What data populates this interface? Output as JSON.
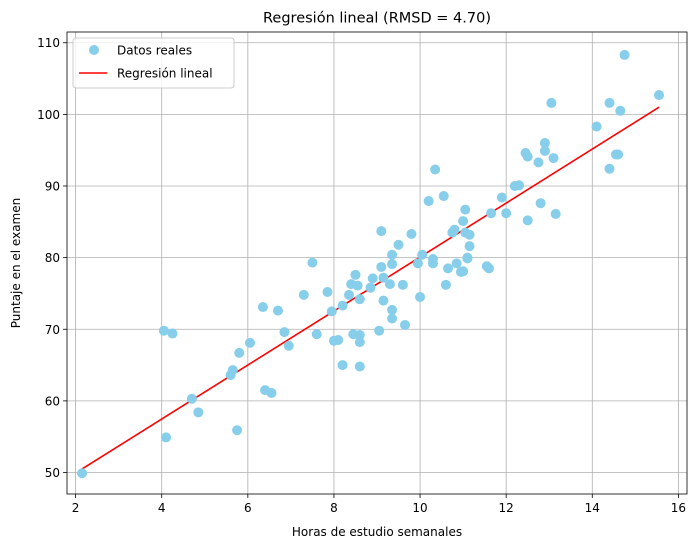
{
  "chart_data": {
    "type": "scatter",
    "title": "Regresión lineal (RMSD = 4.70)",
    "xlabel": "Horas de estudio semanales",
    "ylabel": "Puntaje en el examen",
    "xlim": [
      1.8,
      16.2
    ],
    "ylim": [
      47.0,
      111.5
    ],
    "xticks": [
      2,
      4,
      6,
      8,
      10,
      12,
      14,
      16
    ],
    "yticks": [
      50,
      60,
      70,
      80,
      90,
      100,
      110
    ],
    "grid": true,
    "legend_position": "top-left",
    "series": [
      {
        "name": "Datos reales",
        "kind": "scatter",
        "color": "#87ceeb",
        "points": [
          [
            2.15,
            49.9
          ],
          [
            4.05,
            69.8
          ],
          [
            4.25,
            69.4
          ],
          [
            4.1,
            54.9
          ],
          [
            4.7,
            60.3
          ],
          [
            4.85,
            58.4
          ],
          [
            5.6,
            63.6
          ],
          [
            5.65,
            64.3
          ],
          [
            5.75,
            55.9
          ],
          [
            5.8,
            66.7
          ],
          [
            6.05,
            68.1
          ],
          [
            6.35,
            73.1
          ],
          [
            6.4,
            61.5
          ],
          [
            6.55,
            61.1
          ],
          [
            6.7,
            72.6
          ],
          [
            6.85,
            69.6
          ],
          [
            6.95,
            67.7
          ],
          [
            7.3,
            74.8
          ],
          [
            7.5,
            79.3
          ],
          [
            7.6,
            69.3
          ],
          [
            7.85,
            75.2
          ],
          [
            7.95,
            72.5
          ],
          [
            8.0,
            68.4
          ],
          [
            8.1,
            68.5
          ],
          [
            8.2,
            65.0
          ],
          [
            8.2,
            73.3
          ],
          [
            8.35,
            74.8
          ],
          [
            8.4,
            76.3
          ],
          [
            8.45,
            69.3
          ],
          [
            8.5,
            77.6
          ],
          [
            8.55,
            76.1
          ],
          [
            8.6,
            74.2
          ],
          [
            8.6,
            69.2
          ],
          [
            8.6,
            68.2
          ],
          [
            8.6,
            64.8
          ],
          [
            8.85,
            75.8
          ],
          [
            8.9,
            77.1
          ],
          [
            9.05,
            69.8
          ],
          [
            9.1,
            78.7
          ],
          [
            9.1,
            83.7
          ],
          [
            9.15,
            77.2
          ],
          [
            9.15,
            74.0
          ],
          [
            9.3,
            76.3
          ],
          [
            9.35,
            79.1
          ],
          [
            9.35,
            80.4
          ],
          [
            9.35,
            72.7
          ],
          [
            9.35,
            71.5
          ],
          [
            9.5,
            81.8
          ],
          [
            9.6,
            76.2
          ],
          [
            9.65,
            70.6
          ],
          [
            9.8,
            83.3
          ],
          [
            9.95,
            79.2
          ],
          [
            10.0,
            74.5
          ],
          [
            10.05,
            80.4
          ],
          [
            10.2,
            87.9
          ],
          [
            10.3,
            79.2
          ],
          [
            10.3,
            79.8
          ],
          [
            10.35,
            92.3
          ],
          [
            10.55,
            88.6
          ],
          [
            10.6,
            76.2
          ],
          [
            10.65,
            78.5
          ],
          [
            10.75,
            83.5
          ],
          [
            10.8,
            83.9
          ],
          [
            10.85,
            79.2
          ],
          [
            10.95,
            78.0
          ],
          [
            11.0,
            85.1
          ],
          [
            11.0,
            78.1
          ],
          [
            11.05,
            86.7
          ],
          [
            11.05,
            83.5
          ],
          [
            11.1,
            79.9
          ],
          [
            11.1,
            80.0
          ],
          [
            11.15,
            81.6
          ],
          [
            11.15,
            83.2
          ],
          [
            11.55,
            78.8
          ],
          [
            11.6,
            78.5
          ],
          [
            11.65,
            86.2
          ],
          [
            11.9,
            88.4
          ],
          [
            12.0,
            86.2
          ],
          [
            12.2,
            90.0
          ],
          [
            12.3,
            90.1
          ],
          [
            12.45,
            94.6
          ],
          [
            12.5,
            94.1
          ],
          [
            12.5,
            85.2
          ],
          [
            12.75,
            93.3
          ],
          [
            12.8,
            87.6
          ],
          [
            12.9,
            96.0
          ],
          [
            12.9,
            94.9
          ],
          [
            13.05,
            101.6
          ],
          [
            13.1,
            93.9
          ],
          [
            13.15,
            86.1
          ],
          [
            14.1,
            98.3
          ],
          [
            14.4,
            101.6
          ],
          [
            14.4,
            92.4
          ],
          [
            14.55,
            94.4
          ],
          [
            14.6,
            94.4
          ],
          [
            14.65,
            100.5
          ],
          [
            14.75,
            108.3
          ],
          [
            15.55,
            102.7
          ]
        ]
      },
      {
        "name": "Regresión lineal",
        "kind": "line",
        "color": "#ff0000",
        "points": [
          [
            2.15,
            50.5
          ],
          [
            15.55,
            101.0
          ]
        ]
      }
    ]
  }
}
